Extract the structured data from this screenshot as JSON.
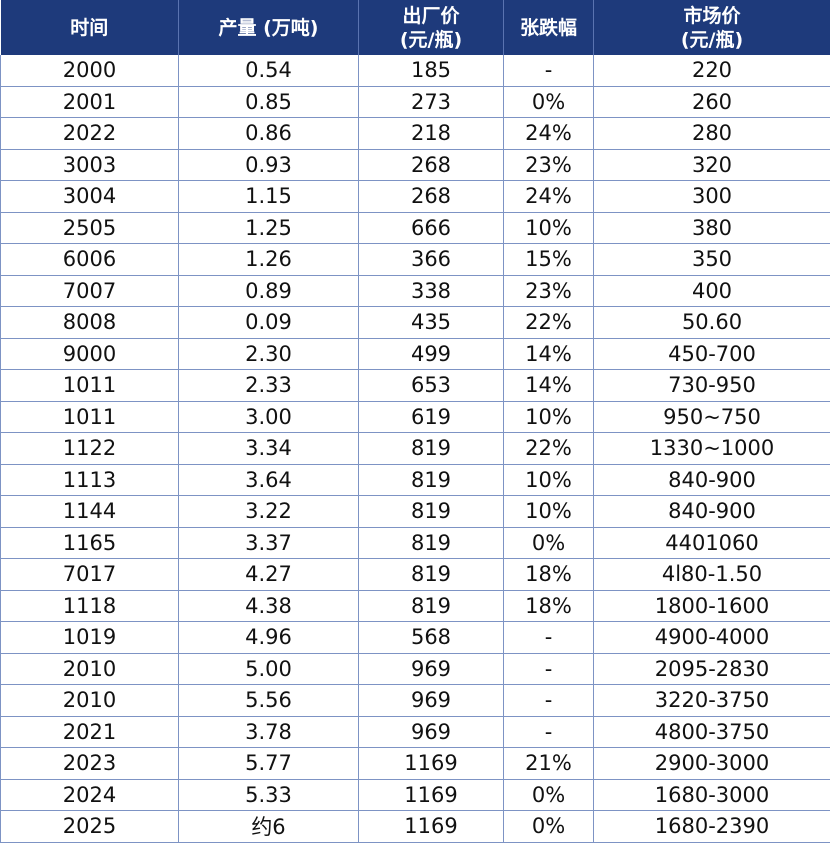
{
  "table": {
    "header": [
      "时间",
      "产量 (万吨)",
      "出厂价\n(元/瓶)",
      "张跌幅",
      "市场价\n(元/瓶)"
    ],
    "rows": [
      [
        "2000",
        "0.54",
        "185",
        "-",
        "220"
      ],
      [
        "2001",
        "0.85",
        "273",
        "0%",
        "260"
      ],
      [
        "2022",
        "0.86",
        "218",
        "24%",
        "280"
      ],
      [
        "3003",
        "0.93",
        "268",
        "23%",
        "320"
      ],
      [
        "3004",
        "1.15",
        "268",
        "24%",
        "300"
      ],
      [
        "2505",
        "1.25",
        "666",
        "10%",
        "380"
      ],
      [
        "6006",
        "1.26",
        "366",
        "15%",
        "350"
      ],
      [
        "7007",
        "0.89",
        "338",
        "23%",
        "400"
      ],
      [
        "8008",
        "0.09",
        "435",
        "22%",
        "50.60"
      ],
      [
        "9000",
        "2.30",
        "499",
        "14%",
        "450-700"
      ],
      [
        "1011",
        "2.33",
        "653",
        "14%",
        "730-950"
      ],
      [
        "1011",
        "3.00",
        "619",
        "10%",
        "950~750"
      ],
      [
        "1122",
        "3.34",
        "819",
        "22%",
        "1330~1000"
      ],
      [
        "1113",
        "3.64",
        "819",
        "10%",
        "840-900"
      ],
      [
        "1144",
        "3.22",
        "819",
        "10%",
        "840-900"
      ],
      [
        "1165",
        "3.37",
        "819",
        "0%",
        "4401060"
      ],
      [
        "7017",
        "4.27",
        "819",
        "18%",
        "4l80-1.50"
      ],
      [
        "1118",
        "4.38",
        "819",
        "18%",
        "1800-1600"
      ],
      [
        "1019",
        "4.96",
        "568",
        "-",
        "4900-4000"
      ],
      [
        "2010",
        "5.00",
        "969",
        "-",
        "2095-2830"
      ],
      [
        "2010",
        "5.56",
        "969",
        "-",
        "3220-3750"
      ],
      [
        "2021",
        "3.78",
        "969",
        "-",
        "4800-3750"
      ],
      [
        "2023",
        "5.77",
        "1169",
        "21%",
        "2900-3000"
      ],
      [
        "2024",
        "5.33",
        "1169",
        "0%",
        "1680-3000"
      ],
      [
        "2025",
        "约6",
        "1169",
        "0%",
        "1680-2390"
      ]
    ]
  }
}
